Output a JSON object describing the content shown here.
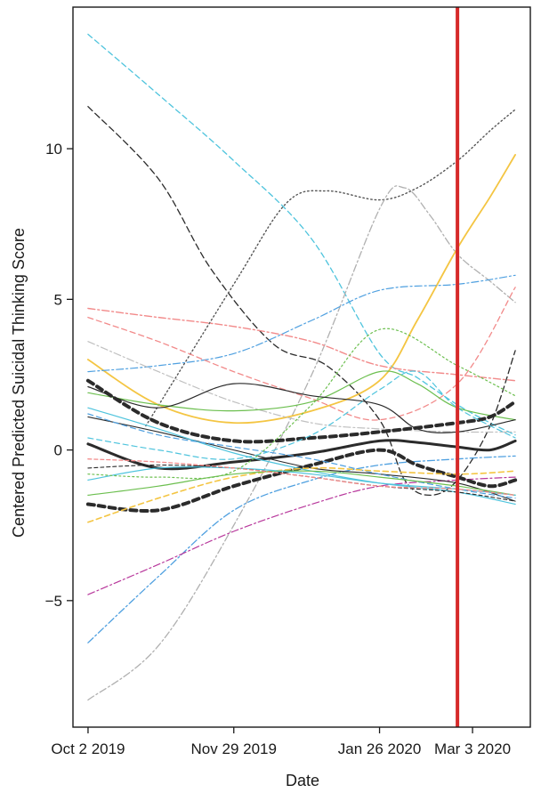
{
  "chart_data": {
    "type": "line",
    "title": "",
    "xlabel": "Date",
    "ylabel": "Centered Predicted Suicidal Thinking Score",
    "x_ticks": [
      "Oct 2 2019",
      "Nov 29 2019",
      "Jan 26 2020",
      "Mar 3 2020"
    ],
    "x_tick_dates": [
      "2019-10-02",
      "2019-11-29",
      "2020-01-26",
      "2020-03-03"
    ],
    "xlim": [
      "2019-09-26",
      "2020-03-26"
    ],
    "y_ticks": [
      -5,
      0,
      5,
      10
    ],
    "ylim": [
      -9.2,
      14.7
    ],
    "grid": false,
    "legend": "none",
    "reference_line": {
      "date": "2020-02-26",
      "color": "#d62a2a"
    },
    "series": [
      {
        "color": "#4fc4dd",
        "dash": "6 4",
        "width": 1.3,
        "points": [
          [
            "2019-10-02",
            13.8
          ],
          [
            "2019-10-30",
            11.8
          ],
          [
            "2019-11-29",
            9.6
          ],
          [
            "2019-12-30",
            7.0
          ],
          [
            "2020-01-26",
            3.2
          ],
          [
            "2020-02-10",
            2.4
          ],
          [
            "2020-02-26",
            1.5
          ],
          [
            "2020-03-10",
            0.9
          ],
          [
            "2020-03-20",
            0.5
          ]
        ]
      },
      {
        "color": "#2b2b2b",
        "dash": "7 4",
        "width": 1.3,
        "points": [
          [
            "2019-10-02",
            11.4
          ],
          [
            "2019-10-30",
            9.0
          ],
          [
            "2019-11-20",
            6.0
          ],
          [
            "2019-12-15",
            3.5
          ],
          [
            "2020-01-05",
            2.8
          ],
          [
            "2020-01-26",
            1.0
          ],
          [
            "2020-02-05",
            -1.0
          ],
          [
            "2020-02-15",
            -1.5
          ],
          [
            "2020-02-26",
            -1.0
          ],
          [
            "2020-03-10",
            0.8
          ],
          [
            "2020-03-20",
            3.3
          ]
        ]
      },
      {
        "color": "#555555",
        "dash": "1.5 3",
        "width": 1.4,
        "points": [
          [
            "2019-10-25",
            0.8
          ],
          [
            "2019-11-29",
            5.5
          ],
          [
            "2019-12-20",
            8.2
          ],
          [
            "2020-01-05",
            8.6
          ],
          [
            "2020-01-26",
            8.3
          ],
          [
            "2020-02-10",
            8.7
          ],
          [
            "2020-02-26",
            9.6
          ],
          [
            "2020-03-10",
            10.6
          ],
          [
            "2020-03-20",
            11.3
          ]
        ]
      },
      {
        "color": "#b0b0b0",
        "dash": "8 3 2 3",
        "width": 1.3,
        "points": [
          [
            "2019-10-02",
            -8.3
          ],
          [
            "2019-10-30",
            -6.5
          ],
          [
            "2019-11-29",
            -2.5
          ],
          [
            "2019-12-30",
            2.5
          ],
          [
            "2020-01-26",
            8.0
          ],
          [
            "2020-02-05",
            8.7
          ],
          [
            "2020-02-15",
            7.8
          ],
          [
            "2020-02-26",
            6.5
          ],
          [
            "2020-03-10",
            5.6
          ],
          [
            "2020-03-20",
            4.9
          ]
        ]
      },
      {
        "color": "#f4c542",
        "dash": "",
        "width": 1.8,
        "points": [
          [
            "2019-10-02",
            3.0
          ],
          [
            "2019-10-30",
            1.5
          ],
          [
            "2019-11-29",
            0.9
          ],
          [
            "2019-12-30",
            1.3
          ],
          [
            "2020-01-26",
            2.3
          ],
          [
            "2020-02-10",
            4.3
          ],
          [
            "2020-02-26",
            6.7
          ],
          [
            "2020-03-10",
            8.4
          ],
          [
            "2020-03-20",
            9.8
          ]
        ]
      },
      {
        "color": "#4fa0e0",
        "dash": "8 3 2 3",
        "width": 1.3,
        "points": [
          [
            "2019-10-02",
            -6.4
          ],
          [
            "2019-10-30",
            -4.2
          ],
          [
            "2019-11-29",
            -2.0
          ],
          [
            "2019-12-30",
            -1.0
          ],
          [
            "2020-01-26",
            -0.5
          ],
          [
            "2020-02-26",
            -0.3
          ],
          [
            "2020-03-20",
            -0.2
          ]
        ]
      },
      {
        "color": "#b8389c",
        "dash": "8 3 2 3",
        "width": 1.2,
        "points": [
          [
            "2019-10-02",
            -4.8
          ],
          [
            "2019-10-30",
            -3.8
          ],
          [
            "2019-11-29",
            -2.7
          ],
          [
            "2019-12-30",
            -1.8
          ],
          [
            "2020-01-26",
            -1.2
          ],
          [
            "2020-02-26",
            -1.0
          ],
          [
            "2020-03-20",
            -0.9
          ]
        ]
      },
      {
        "color": "#4fa0e0",
        "dash": "8 3 2 3",
        "width": 1.2,
        "points": [
          [
            "2019-10-02",
            2.6
          ],
          [
            "2019-10-30",
            2.8
          ],
          [
            "2019-11-29",
            3.2
          ],
          [
            "2019-12-30",
            4.3
          ],
          [
            "2020-01-26",
            5.3
          ],
          [
            "2020-02-26",
            5.5
          ],
          [
            "2020-03-20",
            5.8
          ]
        ]
      },
      {
        "color": "#f28a8a",
        "dash": "8 3 2 3",
        "width": 1.4,
        "points": [
          [
            "2019-10-02",
            4.7
          ],
          [
            "2019-10-30",
            4.4
          ],
          [
            "2019-11-29",
            4.1
          ],
          [
            "2019-12-30",
            3.6
          ],
          [
            "2020-01-26",
            2.8
          ],
          [
            "2020-02-26",
            2.5
          ],
          [
            "2020-03-20",
            2.3
          ]
        ]
      },
      {
        "color": "#f28a8a",
        "dash": "6 4",
        "width": 1.3,
        "points": [
          [
            "2019-10-02",
            4.4
          ],
          [
            "2019-10-30",
            3.6
          ],
          [
            "2019-11-29",
            2.6
          ],
          [
            "2019-12-30",
            1.7
          ],
          [
            "2020-01-26",
            1.0
          ],
          [
            "2020-02-26",
            2.2
          ],
          [
            "2020-03-20",
            5.4
          ]
        ]
      },
      {
        "color": "#c0c0c0",
        "dash": "8 3 2 3",
        "width": 1.2,
        "points": [
          [
            "2019-10-02",
            3.6
          ],
          [
            "2019-10-30",
            2.6
          ],
          [
            "2019-11-29",
            1.6
          ],
          [
            "2019-12-30",
            0.9
          ],
          [
            "2020-01-26",
            0.7
          ],
          [
            "2020-02-26",
            0.6
          ],
          [
            "2020-03-20",
            0.6
          ]
        ]
      },
      {
        "color": "#6cbf4f",
        "dash": "",
        "width": 1.2,
        "points": [
          [
            "2019-10-02",
            1.9
          ],
          [
            "2019-10-30",
            1.5
          ],
          [
            "2019-11-29",
            1.3
          ],
          [
            "2019-12-30",
            1.6
          ],
          [
            "2020-01-26",
            2.6
          ],
          [
            "2020-02-10",
            2.2
          ],
          [
            "2020-02-26",
            1.4
          ],
          [
            "2020-03-20",
            1.0
          ]
        ]
      },
      {
        "color": "#2b2b2b",
        "dash": "",
        "width": 1.2,
        "points": [
          [
            "2019-10-02",
            2.1
          ],
          [
            "2019-10-30",
            1.4
          ],
          [
            "2019-11-29",
            2.2
          ],
          [
            "2019-12-30",
            1.8
          ],
          [
            "2020-01-26",
            1.5
          ],
          [
            "2020-02-10",
            0.7
          ],
          [
            "2020-02-26",
            0.6
          ],
          [
            "2020-03-20",
            1.0
          ]
        ]
      },
      {
        "color": "#2b2b2b",
        "dash": "7 5",
        "width": 4.0,
        "points": [
          [
            "2019-10-02",
            2.3
          ],
          [
            "2019-10-30",
            0.9
          ],
          [
            "2019-11-29",
            0.3
          ],
          [
            "2019-12-30",
            0.4
          ],
          [
            "2020-01-26",
            0.6
          ],
          [
            "2020-02-26",
            0.9
          ],
          [
            "2020-03-10",
            1.1
          ],
          [
            "2020-03-20",
            1.6
          ]
        ]
      },
      {
        "color": "#2b2b2b",
        "dash": "",
        "width": 3.0,
        "points": [
          [
            "2019-10-02",
            0.2
          ],
          [
            "2019-10-30",
            -0.6
          ],
          [
            "2019-11-29",
            -0.4
          ],
          [
            "2019-12-30",
            -0.1
          ],
          [
            "2020-01-26",
            0.3
          ],
          [
            "2020-02-10",
            0.25
          ],
          [
            "2020-02-26",
            0.1
          ],
          [
            "2020-03-10",
            0.0
          ],
          [
            "2020-03-20",
            0.3
          ]
        ]
      },
      {
        "color": "#2b2b2b",
        "dash": "7 5",
        "width": 4.0,
        "points": [
          [
            "2019-10-02",
            -1.8
          ],
          [
            "2019-10-30",
            -2.0
          ],
          [
            "2019-11-29",
            -1.2
          ],
          [
            "2019-12-30",
            -0.5
          ],
          [
            "2020-01-26",
            0.0
          ],
          [
            "2020-02-10",
            -0.5
          ],
          [
            "2020-02-26",
            -0.9
          ],
          [
            "2020-03-10",
            -1.2
          ],
          [
            "2020-03-20",
            -1.0
          ]
        ]
      },
      {
        "color": "#2b2b2b",
        "dash": "",
        "width": 1.1,
        "points": [
          [
            "2019-10-02",
            1.1
          ],
          [
            "2019-10-30",
            0.6
          ],
          [
            "2019-11-29",
            0.0
          ],
          [
            "2019-12-30",
            -0.6
          ],
          [
            "2020-01-26",
            -0.8
          ],
          [
            "2020-02-26",
            -1.1
          ],
          [
            "2020-03-20",
            -1.7
          ]
        ]
      },
      {
        "color": "#4fc4dd",
        "dash": "",
        "width": 1.2,
        "points": [
          [
            "2019-10-02",
            1.4
          ],
          [
            "2019-10-30",
            0.7
          ],
          [
            "2019-11-29",
            -0.1
          ],
          [
            "2019-12-30",
            -0.7
          ],
          [
            "2020-01-26",
            -1.1
          ],
          [
            "2020-02-26",
            -1.4
          ],
          [
            "2020-03-20",
            -1.8
          ]
        ]
      },
      {
        "color": "#4fa0e0",
        "dash": "6 4",
        "width": 1.2,
        "points": [
          [
            "2019-10-02",
            1.2
          ],
          [
            "2019-10-30",
            0.5
          ],
          [
            "2019-11-29",
            0.1
          ],
          [
            "2019-12-30",
            -0.3
          ],
          [
            "2020-01-26",
            -0.8
          ],
          [
            "2020-02-26",
            -1.3
          ],
          [
            "2020-03-20",
            -1.6
          ]
        ]
      },
      {
        "color": "#f4c542",
        "dash": "6 4",
        "width": 1.6,
        "points": [
          [
            "2019-10-02",
            -2.4
          ],
          [
            "2019-10-30",
            -1.6
          ],
          [
            "2019-11-29",
            -0.9
          ],
          [
            "2019-12-30",
            -0.6
          ],
          [
            "2020-01-26",
            -0.7
          ],
          [
            "2020-02-26",
            -0.8
          ],
          [
            "2020-03-20",
            -0.7
          ]
        ]
      },
      {
        "color": "#6cbf4f",
        "dash": "",
        "width": 1.2,
        "points": [
          [
            "2019-10-02",
            -1.5
          ],
          [
            "2019-10-30",
            -1.2
          ],
          [
            "2019-11-29",
            -0.8
          ],
          [
            "2019-12-30",
            -0.7
          ],
          [
            "2020-01-26",
            -0.9
          ],
          [
            "2020-02-26",
            -1.2
          ],
          [
            "2020-03-20",
            -1.5
          ]
        ]
      },
      {
        "color": "#4fc4dd",
        "dash": "",
        "width": 1.2,
        "points": [
          [
            "2019-10-02",
            -1.0
          ],
          [
            "2019-10-30",
            -0.6
          ],
          [
            "2019-11-29",
            -0.6
          ],
          [
            "2019-12-30",
            -0.8
          ],
          [
            "2020-01-26",
            -1.1
          ],
          [
            "2020-02-26",
            -1.3
          ],
          [
            "2020-03-20",
            -1.5
          ]
        ]
      },
      {
        "color": "#2b2b2b",
        "dash": "4 3",
        "width": 1.1,
        "points": [
          [
            "2019-10-02",
            -0.6
          ],
          [
            "2019-10-30",
            -0.5
          ],
          [
            "2019-11-29",
            -0.6
          ],
          [
            "2019-12-30",
            -0.9
          ],
          [
            "2020-01-26",
            -1.2
          ],
          [
            "2020-02-26",
            -1.4
          ],
          [
            "2020-03-20",
            -1.7
          ]
        ]
      },
      {
        "color": "#f28a8a",
        "dash": "4 3",
        "width": 1.3,
        "points": [
          [
            "2019-10-02",
            -0.3
          ],
          [
            "2019-10-30",
            -0.4
          ],
          [
            "2019-11-29",
            -0.6
          ],
          [
            "2019-12-30",
            -0.9
          ],
          [
            "2020-01-26",
            -1.2
          ],
          [
            "2020-02-26",
            -1.3
          ],
          [
            "2020-03-20",
            -1.5
          ]
        ]
      },
      {
        "color": "#6cbf4f",
        "dash": "2 3",
        "width": 1.2,
        "points": [
          [
            "2019-10-02",
            -0.8
          ],
          [
            "2019-10-30",
            -0.9
          ],
          [
            "2019-11-29",
            -0.7
          ],
          [
            "2019-12-30",
            1.5
          ],
          [
            "2020-01-26",
            4.0
          ],
          [
            "2020-02-26",
            2.8
          ],
          [
            "2020-03-20",
            1.8
          ]
        ]
      },
      {
        "color": "#4fc4dd",
        "dash": "6 4",
        "width": 1.2,
        "points": [
          [
            "2019-10-02",
            0.4
          ],
          [
            "2019-10-30",
            0.0
          ],
          [
            "2019-11-29",
            -0.3
          ],
          [
            "2019-12-30",
            0.5
          ],
          [
            "2020-01-26",
            2.0
          ],
          [
            "2020-02-10",
            2.6
          ],
          [
            "2020-02-26",
            1.4
          ],
          [
            "2020-03-20",
            0.4
          ]
        ]
      }
    ]
  }
}
